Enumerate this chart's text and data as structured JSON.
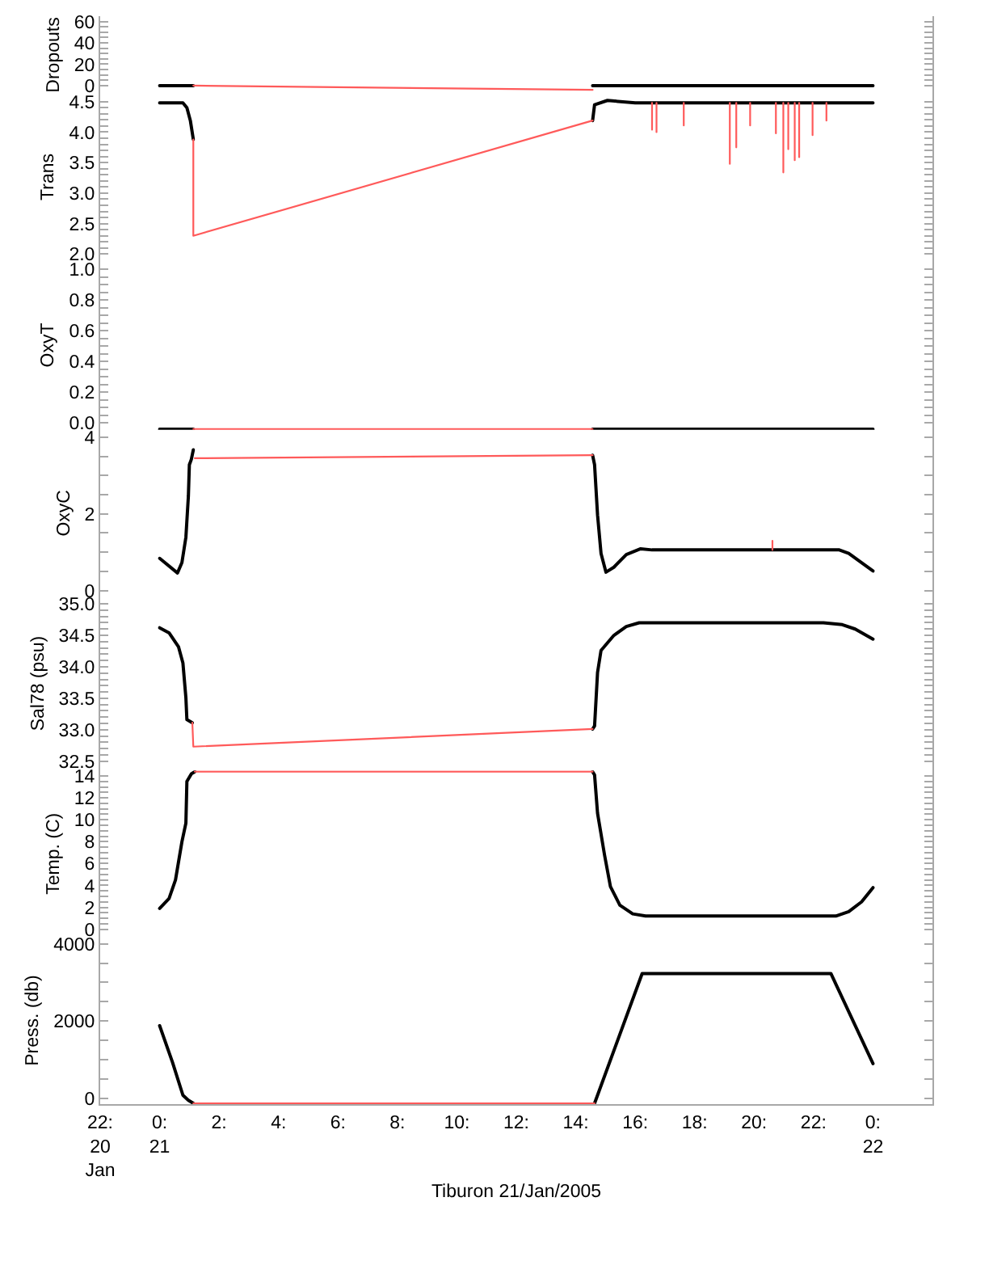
{
  "chart_data": [
    {
      "type": "line",
      "ylabel": "Dropouts",
      "ylim": [
        -7.6,
        65
      ],
      "yticks": [
        0,
        {
          "value": 5,
          "label": null
        },
        {
          "value": 10,
          "label": null
        },
        {
          "value": 15,
          "label": null
        },
        20,
        {
          "value": 25,
          "label": null
        },
        {
          "value": 30,
          "label": null
        },
        {
          "value": 35,
          "label": null
        },
        40,
        {
          "value": 45,
          "label": null
        },
        {
          "value": 50,
          "label": null
        },
        {
          "value": 55,
          "label": null
        },
        60
      ],
      "xlim": [
        "2005-01-20T22:00",
        "2005-01-22T02:00"
      ],
      "tick_labels": "y",
      "series": [
        {
          "color": "#000000",
          "x": [
            "2005-01-21T00:00",
            "2005-01-21T01:08",
            null,
            "2005-01-21T14:34",
            "2005-01-22T00:00"
          ],
          "values": [
            0,
            0,
            null,
            0,
            0
          ]
        },
        {
          "color": "#ff5a5a",
          "x": [
            "2005-01-21T01:08",
            "2005-01-21T14:34"
          ],
          "values": [
            0,
            -4
          ]
        }
      ]
    },
    {
      "type": "line",
      "ylabel": "Trans",
      "ylim": [
        1.9,
        4.63
      ],
      "yticks": [
        {
          "value": 2.0,
          "label": "2.0"
        },
        {
          "value": 2.1,
          "label": null
        },
        {
          "value": 2.2,
          "label": null
        },
        {
          "value": 2.3,
          "label": null
        },
        {
          "value": 2.4,
          "label": null
        },
        {
          "value": 2.5,
          "label": "2.5"
        },
        {
          "value": 2.6,
          "label": null
        },
        {
          "value": 2.7,
          "label": null
        },
        {
          "value": 2.8,
          "label": null
        },
        {
          "value": 2.9,
          "label": null
        },
        {
          "value": 3.0,
          "label": "3.0"
        },
        {
          "value": 3.1,
          "label": null
        },
        {
          "value": 3.2,
          "label": null
        },
        {
          "value": 3.3,
          "label": null
        },
        {
          "value": 3.4,
          "label": null
        },
        {
          "value": 3.5,
          "label": "3.5"
        },
        {
          "value": 3.6,
          "label": null
        },
        {
          "value": 3.7,
          "label": null
        },
        {
          "value": 3.8,
          "label": null
        },
        {
          "value": 3.9,
          "label": null
        },
        {
          "value": 4.0,
          "label": "4.0"
        },
        {
          "value": 4.1,
          "label": null
        },
        {
          "value": 4.2,
          "label": null
        },
        {
          "value": 4.3,
          "label": null
        },
        {
          "value": 4.4,
          "label": null
        },
        {
          "value": 4.5,
          "label": "4.5"
        }
      ],
      "xlim": [
        "2005-01-20T22:00",
        "2005-01-22T02:00"
      ],
      "tick_labels": "y",
      "series": [
        {
          "color": "#000000",
          "x": [
            "2005-01-21T00:00",
            "2005-01-21T00:47",
            "2005-01-21T00:55",
            "2005-01-21T01:02",
            "2005-01-21T01:08",
            null,
            "2005-01-21T14:34",
            "2005-01-21T14:38",
            "2005-01-21T15:04",
            "2005-01-21T16:00",
            "2005-01-22T00:00"
          ],
          "values": [
            4.48,
            4.48,
            4.4,
            4.19,
            3.88,
            null,
            4.19,
            4.45,
            4.52,
            4.48,
            4.48
          ]
        },
        {
          "color": "#ff5a5a",
          "x": [
            "2005-01-21T01:08",
            "2005-01-21T01:08",
            "2005-01-21T14:34",
            null,
            "2005-01-21T16:34",
            "2005-01-21T16:34",
            null,
            "2005-01-21T16:43",
            "2005-01-21T16:43",
            null,
            "2005-01-21T17:38",
            "2005-01-21T17:38",
            null,
            "2005-01-21T19:11",
            "2005-01-21T19:11",
            null,
            "2005-01-21T19:24",
            "2005-01-21T19:24",
            null,
            "2005-01-21T19:52",
            "2005-01-21T19:52",
            null,
            "2005-01-21T20:44",
            "2005-01-21T20:44",
            null,
            "2005-01-21T20:59",
            "2005-01-21T20:59",
            null,
            "2005-01-21T21:09",
            "2005-01-21T21:09",
            null,
            "2005-01-21T21:22",
            "2005-01-21T21:22",
            null,
            "2005-01-21T21:31",
            "2005-01-21T21:31",
            null,
            "2005-01-21T21:58",
            "2005-01-21T21:58",
            null,
            "2005-01-21T22:26",
            "2005-01-21T22:26"
          ],
          "values": [
            3.88,
            2.3,
            4.19,
            null,
            4.48,
            4.04,
            null,
            4.48,
            4.0,
            null,
            4.48,
            4.11,
            null,
            4.48,
            3.48,
            null,
            4.48,
            3.75,
            null,
            4.48,
            4.11,
            null,
            4.48,
            3.98,
            null,
            4.48,
            3.34,
            null,
            4.48,
            3.72,
            null,
            4.48,
            3.54,
            null,
            4.48,
            3.59,
            null,
            4.48,
            3.95,
            null,
            4.48,
            4.19
          ]
        }
      ]
    },
    {
      "type": "line",
      "ylabel": "OxyT",
      "ylim": [
        -0.045,
        1.06
      ],
      "yticks": [
        {
          "value": 0,
          "label": "0.0"
        },
        {
          "value": 0.05,
          "label": null
        },
        {
          "value": 0.1,
          "label": null
        },
        {
          "value": 0.15,
          "label": null
        },
        {
          "value": 0.2,
          "label": "0.2"
        },
        {
          "value": 0.25,
          "label": null
        },
        {
          "value": 0.3,
          "label": null
        },
        {
          "value": 0.35,
          "label": null
        },
        {
          "value": 0.4,
          "label": "0.4"
        },
        {
          "value": 0.45,
          "label": null
        },
        {
          "value": 0.5,
          "label": null
        },
        {
          "value": 0.55,
          "label": null
        },
        {
          "value": 0.6,
          "label": "0.6"
        },
        {
          "value": 0.65,
          "label": null
        },
        {
          "value": 0.7,
          "label": null
        },
        {
          "value": 0.75,
          "label": null
        },
        {
          "value": 0.8,
          "label": "0.8"
        },
        {
          "value": 0.85,
          "label": null
        },
        {
          "value": 0.9,
          "label": null
        },
        {
          "value": 0.95,
          "label": null
        },
        {
          "value": 1,
          "label": "1.0"
        }
      ],
      "xlim": [
        "2005-01-20T22:00",
        "2005-01-22T02:00"
      ],
      "tick_labels": "y",
      "series": [
        {
          "color": "#000000",
          "x": [
            "2005-01-21T00:00",
            "2005-01-21T01:08",
            null,
            "2005-01-21T14:34",
            "2005-01-22T00:00"
          ],
          "values": [
            -0.04,
            -0.04,
            null,
            -0.04,
            -0.04
          ]
        },
        {
          "color": "#ff5a5a",
          "x": [
            "2005-01-21T01:08",
            "2005-01-21T14:34"
          ],
          "values": [
            -0.04,
            -0.04
          ]
        }
      ]
    },
    {
      "type": "line",
      "ylabel": "OxyC",
      "ylim": [
        -0.15,
        4.19
      ],
      "yticks": [
        0,
        {
          "value": 0.5,
          "label": null
        },
        {
          "value": 1,
          "label": null
        },
        {
          "value": 1.5,
          "label": null
        },
        2,
        {
          "value": 2.5,
          "label": null
        },
        {
          "value": 3,
          "label": null
        },
        {
          "value": 3.5,
          "label": null
        },
        4
      ],
      "xlim": [
        "2005-01-20T22:00",
        "2005-01-22T02:00"
      ],
      "tick_labels": "y",
      "series": [
        {
          "color": "#000000",
          "x": [
            "2005-01-21T00:00",
            "2005-01-21T00:36",
            "2005-01-21T00:45",
            "2005-01-21T00:53",
            "2005-01-21T00:58",
            "2005-01-21T01:00",
            "2005-01-21T01:04",
            "2005-01-21T01:08",
            null,
            "2005-01-21T14:34",
            "2005-01-21T14:38",
            "2005-01-21T14:44",
            "2005-01-21T14:51",
            "2005-01-21T15:01",
            "2005-01-21T15:17",
            "2005-01-21T15:42",
            "2005-01-21T16:11",
            "2005-01-21T16:34",
            "2005-01-21T22:52",
            "2005-01-21T23:11",
            "2005-01-22T00:00"
          ],
          "values": [
            0.84,
            0.46,
            0.73,
            1.39,
            2.46,
            3.28,
            3.42,
            3.67,
            null,
            3.53,
            3.28,
            1.97,
            0.97,
            0.48,
            0.61,
            0.94,
            1.09,
            1.06,
            1.06,
            0.97,
            0.51
          ]
        },
        {
          "color": "#ff5a5a",
          "x": [
            "2005-01-21T01:11",
            "2005-01-21T14:34",
            null,
            "2005-01-21T20:37",
            "2005-01-21T20:37"
          ],
          "values": [
            3.45,
            3.53,
            null,
            1.06,
            1.3
          ]
        }
      ]
    },
    {
      "type": "line",
      "ylabel": "Sal78 (psu)",
      "ylim": [
        32.35,
        35.12
      ],
      "yticks": [
        {
          "value": 32.5,
          "label": "32.5"
        },
        {
          "value": 32.6,
          "label": null
        },
        {
          "value": 32.7,
          "label": null
        },
        {
          "value": 32.8,
          "label": null
        },
        {
          "value": 32.9,
          "label": null
        },
        {
          "value": 33.0,
          "label": "33.0"
        },
        {
          "value": 33.1,
          "label": null
        },
        {
          "value": 33.2,
          "label": null
        },
        {
          "value": 33.3,
          "label": null
        },
        {
          "value": 33.4,
          "label": null
        },
        {
          "value": 33.5,
          "label": "33.5"
        },
        {
          "value": 33.6,
          "label": null
        },
        {
          "value": 33.7,
          "label": null
        },
        {
          "value": 33.8,
          "label": null
        },
        {
          "value": 33.9,
          "label": null
        },
        {
          "value": 34.0,
          "label": "34.0"
        },
        {
          "value": 34.1,
          "label": null
        },
        {
          "value": 34.2,
          "label": null
        },
        {
          "value": 34.3,
          "label": null
        },
        {
          "value": 34.4,
          "label": null
        },
        {
          "value": 34.5,
          "label": "34.5"
        },
        {
          "value": 34.6,
          "label": null
        },
        {
          "value": 34.7,
          "label": null
        },
        {
          "value": 34.8,
          "label": null
        },
        {
          "value": 34.9,
          "label": null
        },
        {
          "value": 35.0,
          "label": "35.0"
        }
      ],
      "xlim": [
        "2005-01-20T22:00",
        "2005-01-22T02:00"
      ],
      "tick_labels": "y",
      "series": [
        {
          "color": "#000000",
          "x": [
            "2005-01-21T00:00",
            "2005-01-21T00:19",
            "2005-01-21T00:38",
            "2005-01-21T00:47",
            "2005-01-21T00:53",
            "2005-01-21T00:55",
            "2005-01-21T01:06",
            null,
            "2005-01-21T14:34",
            "2005-01-21T14:38",
            "2005-01-21T14:44",
            "2005-01-21T14:51",
            "2005-01-21T15:17",
            "2005-01-21T15:42",
            "2005-01-21T16:08",
            "2005-01-21T22:20",
            "2005-01-21T22:58",
            "2005-01-21T23:24",
            "2005-01-22T00:00"
          ],
          "values": [
            34.62,
            34.54,
            34.32,
            34.06,
            33.51,
            33.16,
            33.11,
            null,
            33.01,
            33.06,
            33.91,
            34.26,
            34.5,
            34.64,
            34.7,
            34.7,
            34.67,
            34.6,
            34.44
          ]
        },
        {
          "color": "#ff5a5a",
          "x": [
            "2005-01-21T01:06",
            "2005-01-21T01:08",
            "2005-01-21T14:34"
          ],
          "values": [
            33.11,
            32.73,
            33.01
          ]
        }
      ]
    },
    {
      "type": "line",
      "ylabel": "Temp. (C)",
      "ylim": [
        -0.7,
        14.5
      ],
      "yticks": [
        0,
        {
          "value": 0.5,
          "label": null
        },
        {
          "value": 1,
          "label": null
        },
        {
          "value": 1.5,
          "label": null
        },
        2,
        {
          "value": 2.5,
          "label": null
        },
        {
          "value": 3,
          "label": null
        },
        {
          "value": 3.5,
          "label": null
        },
        4,
        {
          "value": 4.5,
          "label": null
        },
        {
          "value": 5,
          "label": null
        },
        {
          "value": 5.5,
          "label": null
        },
        6,
        {
          "value": 6.5,
          "label": null
        },
        {
          "value": 7,
          "label": null
        },
        {
          "value": 7.5,
          "label": null
        },
        8,
        {
          "value": 8.5,
          "label": null
        },
        {
          "value": 9,
          "label": null
        },
        {
          "value": 9.5,
          "label": null
        },
        10,
        {
          "value": 10.5,
          "label": null
        },
        {
          "value": 11,
          "label": null
        },
        {
          "value": 11.5,
          "label": null
        },
        12,
        {
          "value": 12.5,
          "label": null
        },
        {
          "value": 13,
          "label": null
        },
        {
          "value": 13.5,
          "label": null
        },
        14
      ],
      "xlim": [
        "2005-01-20T22:00",
        "2005-01-22T02:00"
      ],
      "tick_labels": "y",
      "series": [
        {
          "color": "#000000",
          "x": [
            "2005-01-21T00:00",
            "2005-01-21T00:19",
            "2005-01-21T00:32",
            "2005-01-21T00:45",
            "2005-01-21T00:53",
            "2005-01-21T00:55",
            "2005-01-21T01:04",
            "2005-01-21T01:11",
            null,
            "2005-01-21T14:34",
            "2005-01-21T14:38",
            "2005-01-21T14:44",
            "2005-01-21T14:58",
            "2005-01-21T15:10",
            "2005-01-21T15:29",
            "2005-01-21T15:55",
            "2005-01-21T16:21",
            "2005-01-21T22:45",
            "2005-01-21T23:11",
            "2005-01-21T23:37",
            "2005-01-22T00:00"
          ],
          "values": [
            1.9,
            2.8,
            4.5,
            8.0,
            9.7,
            13.5,
            14.2,
            14.4,
            null,
            14.4,
            14.1,
            10.6,
            6.8,
            3.9,
            2.2,
            1.4,
            1.2,
            1.2,
            1.6,
            2.5,
            3.8
          ]
        },
        {
          "color": "#ff5a5a",
          "x": [
            "2005-01-21T01:11",
            "2005-01-21T14:34"
          ],
          "values": [
            14.4,
            14.4
          ]
        }
      ]
    },
    {
      "type": "line",
      "ylabel": "Press. (db)",
      "xlabel": "Tiburon 21/Jan/2005",
      "ylim": [
        -150,
        4180
      ],
      "yticks": [
        0,
        {
          "value": 500,
          "label": null
        },
        {
          "value": 1000,
          "label": null
        },
        {
          "value": 1500,
          "label": null
        },
        2000,
        {
          "value": 2500,
          "label": null
        },
        {
          "value": 3000,
          "label": null
        },
        {
          "value": 3500,
          "label": null
        },
        4000
      ],
      "xlim": [
        "2005-01-20T22:00",
        "2005-01-22T02:00"
      ],
      "xticks": [
        {
          "value": "2005-01-20T22:00",
          "label": "22:\n20\nJan"
        },
        {
          "value": "2005-01-21T00:00",
          "label": "0:\n21"
        },
        {
          "value": "2005-01-21T02:00",
          "label": "2:"
        },
        {
          "value": "2005-01-21T04:00",
          "label": "4:"
        },
        {
          "value": "2005-01-21T06:00",
          "label": "6:"
        },
        {
          "value": "2005-01-21T08:00",
          "label": "8:"
        },
        {
          "value": "2005-01-21T10:00",
          "label": "10:"
        },
        {
          "value": "2005-01-21T12:00",
          "label": "12:"
        },
        {
          "value": "2005-01-21T14:00",
          "label": "14:"
        },
        {
          "value": "2005-01-21T16:00",
          "label": "16:"
        },
        {
          "value": "2005-01-21T18:00",
          "label": "18:"
        },
        {
          "value": "2005-01-21T20:00",
          "label": "20:"
        },
        {
          "value": "2005-01-21T22:00",
          "label": "22:"
        },
        {
          "value": "2005-01-22T00:00",
          "label": "0:\n22"
        }
      ],
      "series": [
        {
          "color": "#000000",
          "x": [
            "2005-01-21T00:00",
            "2005-01-21T00:26",
            "2005-01-21T00:47",
            "2005-01-21T00:58",
            "2005-01-21T01:08",
            null,
            "2005-01-21T14:38",
            "2005-01-21T16:14",
            "2005-01-21T22:35",
            "2005-01-22T00:00"
          ],
          "values": [
            1880,
            930,
            80,
            -50,
            -130,
            null,
            -130,
            3230,
            3230,
            900
          ]
        },
        {
          "color": "#ff5a5a",
          "x": [
            "2005-01-21T01:08",
            "2005-01-21T14:38"
          ],
          "values": [
            -130,
            -130
          ]
        }
      ]
    }
  ]
}
